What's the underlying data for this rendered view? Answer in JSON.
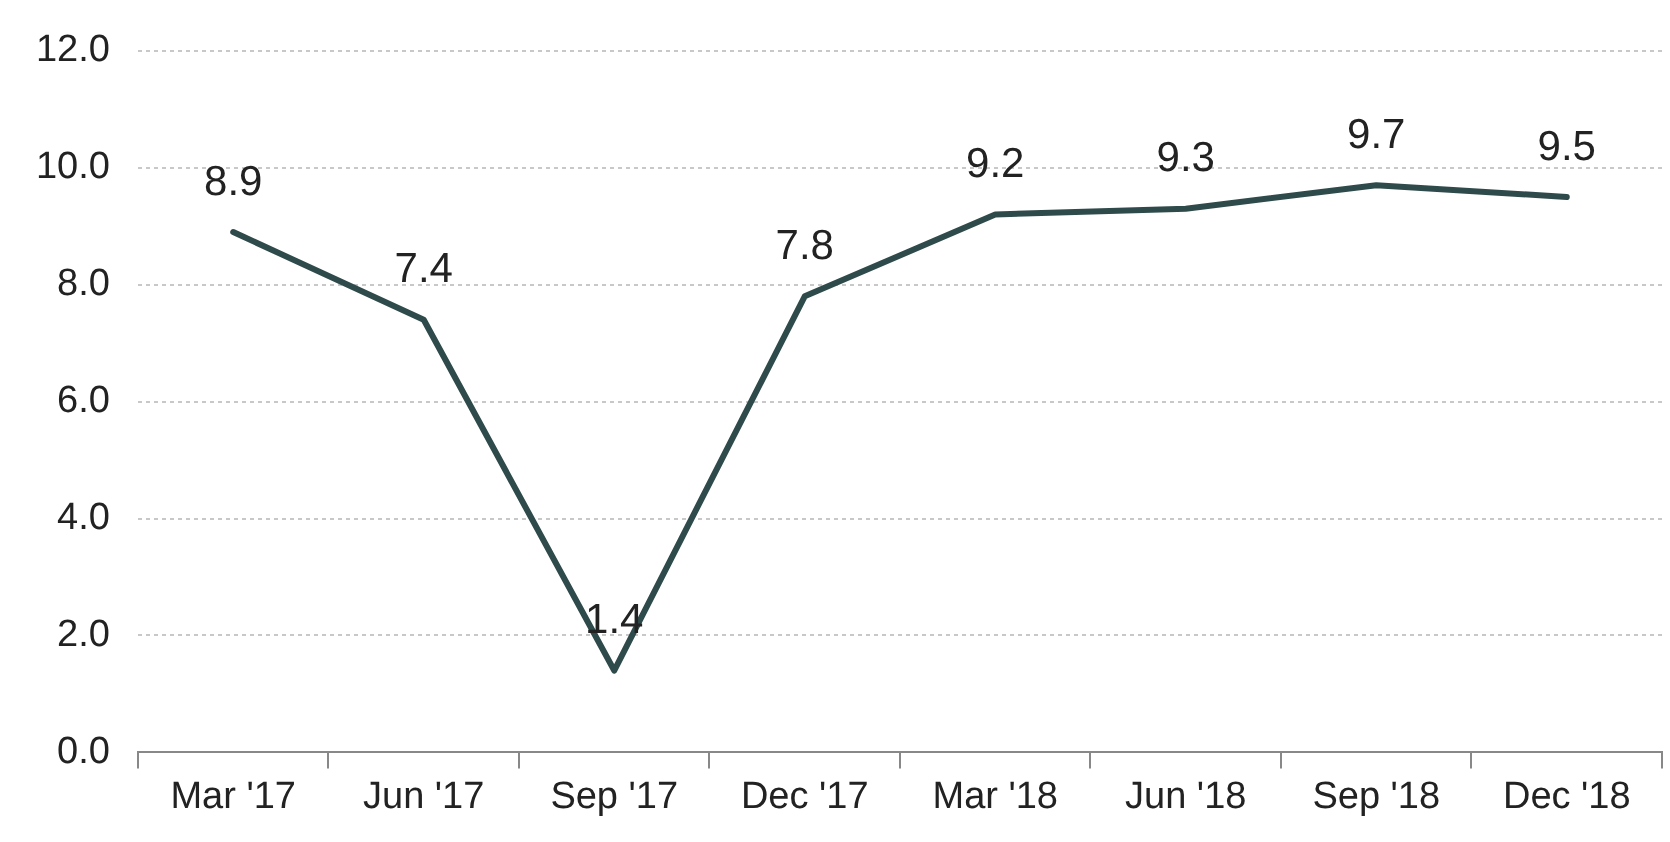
{
  "chart_data": {
    "type": "line",
    "categories": [
      "Mar '17",
      "Jun '17",
      "Sep '17",
      "Dec '17",
      "Mar '18",
      "Jun '18",
      "Sep '18",
      "Dec '18"
    ],
    "series": [
      {
        "color": "#2f4a4a",
        "values": [
          8.9,
          7.4,
          1.4,
          7.8,
          9.2,
          9.3,
          9.7,
          9.5
        ]
      }
    ],
    "ylim": [
      0,
      12
    ],
    "yticks": [
      {
        "value": 0,
        "label": "0.0"
      },
      {
        "value": 2,
        "label": "2.0"
      },
      {
        "value": 4,
        "label": "4.0"
      },
      {
        "value": 6,
        "label": "6.0"
      },
      {
        "value": 8,
        "label": "8.0"
      },
      {
        "value": 10,
        "label": "10.0"
      },
      {
        "value": 12,
        "label": "12.0"
      }
    ],
    "grid": "y",
    "legend": false,
    "marker": "none",
    "line_style": "solid",
    "data_labels": true
  }
}
